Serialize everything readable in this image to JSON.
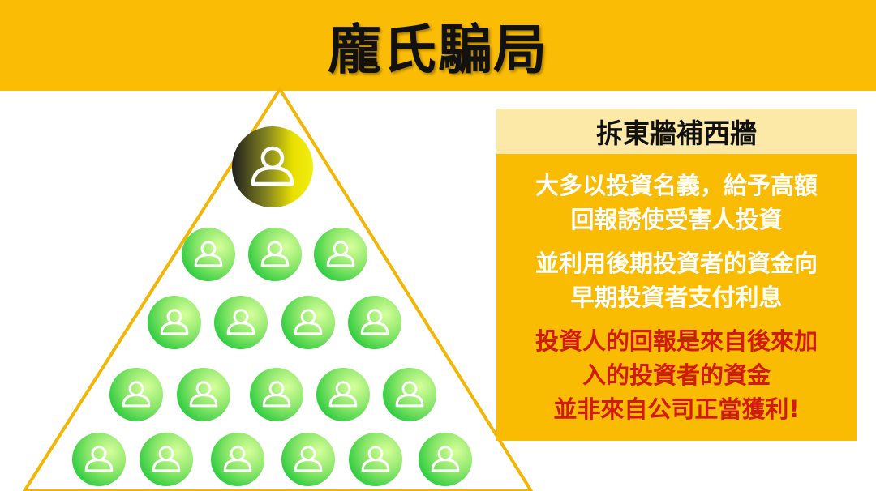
{
  "title": "龐氏騙局",
  "panel": {
    "header": "拆東牆補西牆",
    "paragraphs": [
      {
        "style": "white",
        "lines": [
          "大多以投資名義，給予高額",
          "回報誘使受害人投資"
        ]
      },
      {
        "style": "white",
        "lines": [
          "並利用後期投資者的資金向",
          "早期投資者支付利息"
        ]
      },
      {
        "style": "red",
        "lines": [
          "投資人的回報是來自後來加",
          "入的投資者的資金",
          "並非來自公司正當獲利!"
        ]
      }
    ]
  },
  "pyramid": {
    "rows": [
      1,
      3,
      4,
      5,
      6
    ],
    "top_icon": "user-icon-gold",
    "icon": "user-icon-green"
  },
  "colors": {
    "accent": "#FBBC05",
    "header_bg": "#FCE9A8",
    "body_bg": "#F9BC02",
    "warning_text": "#D31A11",
    "pyramid_outline": "#F2B705",
    "green_light": "#C8FF8A",
    "green_dark": "#2ECC40"
  }
}
